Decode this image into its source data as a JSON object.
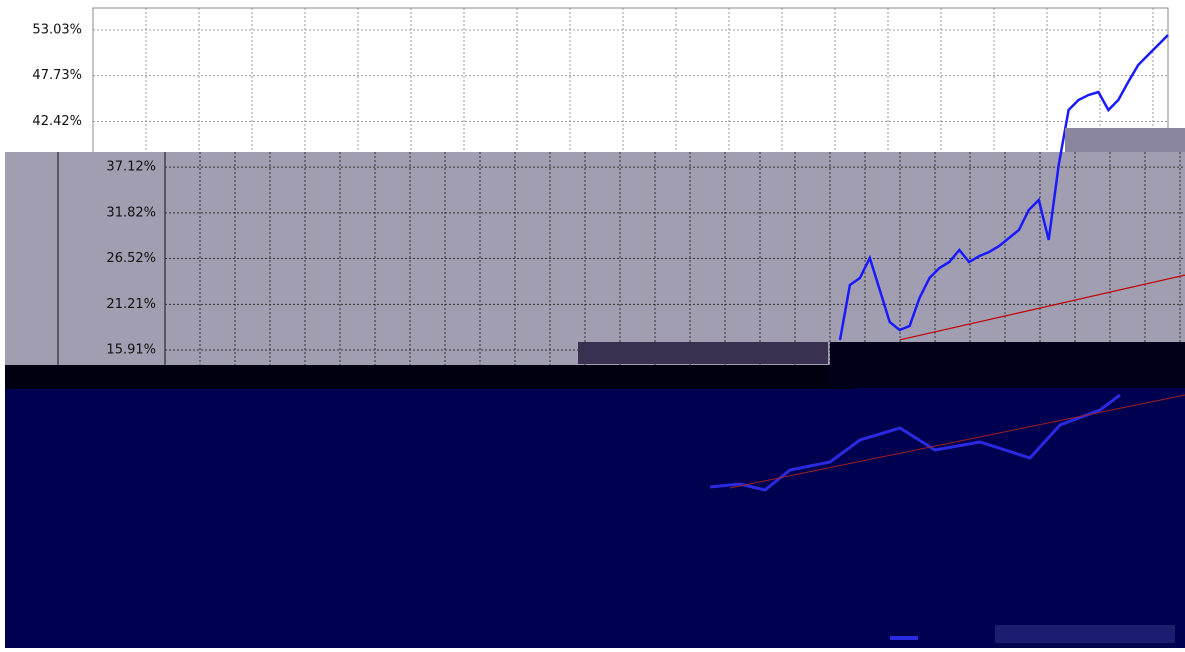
{
  "chart_data": {
    "type": "line",
    "ylim": [
      14.29,
      55.58
    ],
    "yticks": [
      {
        "value": 53.03,
        "label": "53.03%"
      },
      {
        "value": 47.73,
        "label": "47.73%"
      },
      {
        "value": 42.42,
        "label": "42.42%"
      },
      {
        "value": 37.12,
        "label": "37.12%"
      },
      {
        "value": 31.82,
        "label": "31.82%"
      },
      {
        "value": 26.52,
        "label": "26.52%"
      },
      {
        "value": 21.21,
        "label": "21.21%"
      },
      {
        "value": 15.91,
        "label": "15.91%"
      }
    ],
    "grid": true,
    "series": [
      {
        "color": "#1a1aff",
        "values": [
          17.07,
          23.45,
          24.26,
          26.58,
          22.87,
          19.16,
          18.23,
          18.69,
          21.94,
          24.26,
          25.42,
          26.12,
          27.51,
          26.12,
          26.81,
          27.28,
          27.97,
          28.9,
          29.83,
          32.15,
          33.31,
          28.67,
          37.37,
          43.75,
          44.91,
          45.49,
          45.84,
          43.75,
          44.91,
          47.0,
          48.97,
          50.13,
          51.29,
          52.45
        ]
      },
      {
        "color": "#c00000",
        "values": [
          17.1,
          24.6
        ]
      }
    ]
  }
}
